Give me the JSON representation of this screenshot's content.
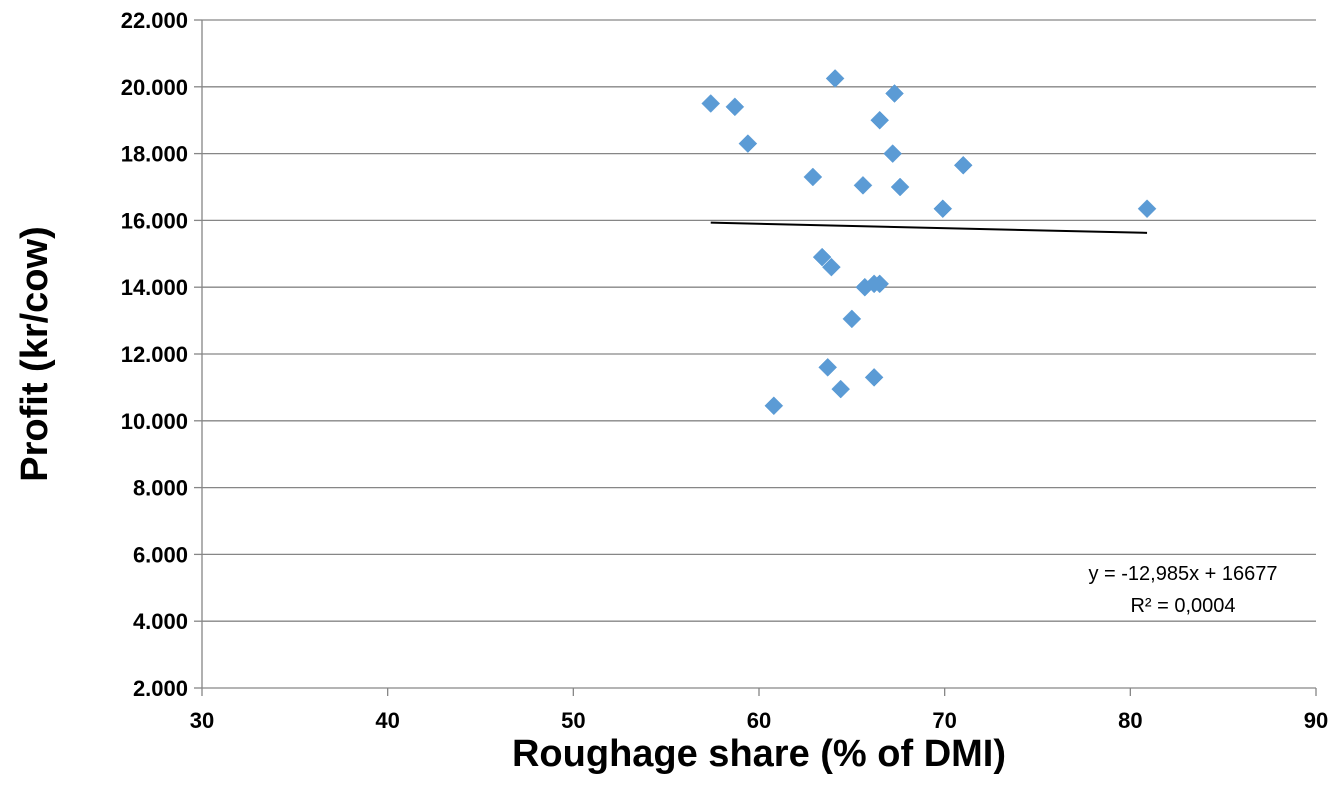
{
  "chart_data": {
    "type": "scatter",
    "title": "",
    "xlabel": "Roughage share (% of DMI)",
    "ylabel": "Profit (kr/cow)",
    "xlim": [
      30,
      90
    ],
    "ylim": [
      2000,
      22000
    ],
    "x_ticks": [
      30,
      40,
      50,
      60,
      70,
      80,
      90
    ],
    "x_tick_labels": [
      "30",
      "40",
      "50",
      "60",
      "70",
      "80",
      "90"
    ],
    "y_ticks": [
      2000,
      4000,
      6000,
      8000,
      10000,
      12000,
      14000,
      16000,
      18000,
      20000,
      22000
    ],
    "y_tick_labels": [
      "2.000",
      "4.000",
      "6.000",
      "8.000",
      "10.000",
      "12.000",
      "14.000",
      "16.000",
      "18.000",
      "20.000",
      "22.000"
    ],
    "grid": "horizontal",
    "marker": "diamond",
    "marker_color": "#5b9bd5",
    "points": [
      {
        "x": 57.4,
        "y": 19500
      },
      {
        "x": 58.7,
        "y": 19400
      },
      {
        "x": 59.4,
        "y": 18300
      },
      {
        "x": 60.8,
        "y": 10450
      },
      {
        "x": 62.9,
        "y": 17300
      },
      {
        "x": 63.4,
        "y": 14900
      },
      {
        "x": 63.7,
        "y": 11600
      },
      {
        "x": 63.9,
        "y": 14600
      },
      {
        "x": 64.1,
        "y": 20250
      },
      {
        "x": 64.4,
        "y": 10950
      },
      {
        "x": 65.0,
        "y": 13050
      },
      {
        "x": 65.6,
        "y": 17050
      },
      {
        "x": 65.7,
        "y": 14000
      },
      {
        "x": 66.2,
        "y": 14100
      },
      {
        "x": 66.2,
        "y": 11300
      },
      {
        "x": 66.5,
        "y": 19000
      },
      {
        "x": 66.5,
        "y": 14100
      },
      {
        "x": 67.2,
        "y": 18000
      },
      {
        "x": 67.3,
        "y": 19800
      },
      {
        "x": 67.6,
        "y": 17000
      },
      {
        "x": 69.9,
        "y": 16350
      },
      {
        "x": 71.0,
        "y": 17650
      },
      {
        "x": 80.9,
        "y": 16350
      }
    ],
    "trendline": {
      "type": "linear",
      "slope": -12.985,
      "intercept": 16677,
      "x_range": [
        57.4,
        80.9
      ],
      "color": "#000000",
      "equation_label": "y = -12,985x + 16677",
      "r2_label": "R² = 0,0004"
    }
  }
}
